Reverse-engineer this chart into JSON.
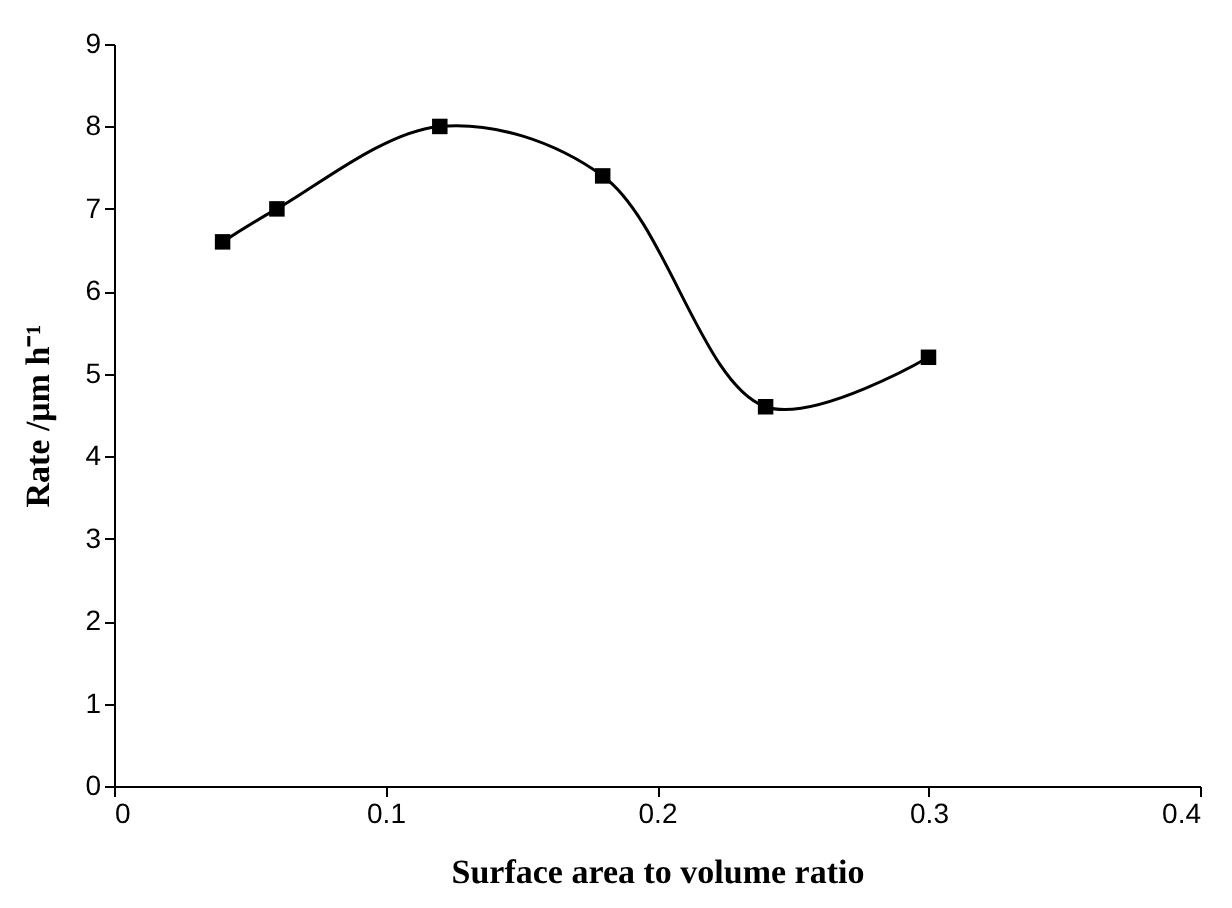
{
  "chart_data": {
    "type": "line",
    "xlabel": "Surface area to volume ratio",
    "ylabel": "Rate /μm h⁻¹",
    "x": [
      0.04,
      0.06,
      0.12,
      0.18,
      0.24,
      0.3
    ],
    "series": [
      {
        "color": "#000000",
        "values": [
          6.6,
          7.0,
          8.0,
          7.4,
          4.6,
          5.2
        ]
      }
    ],
    "xlim": [
      0,
      0.4
    ],
    "xticks": [
      0,
      0.1,
      0.2,
      0.3,
      0.4
    ],
    "ylim": [
      0,
      9
    ],
    "yticks": [
      0,
      1,
      2,
      3,
      4,
      5,
      6,
      7,
      8,
      9
    ],
    "marker": "square",
    "line_style": "solid",
    "grid": false
  }
}
